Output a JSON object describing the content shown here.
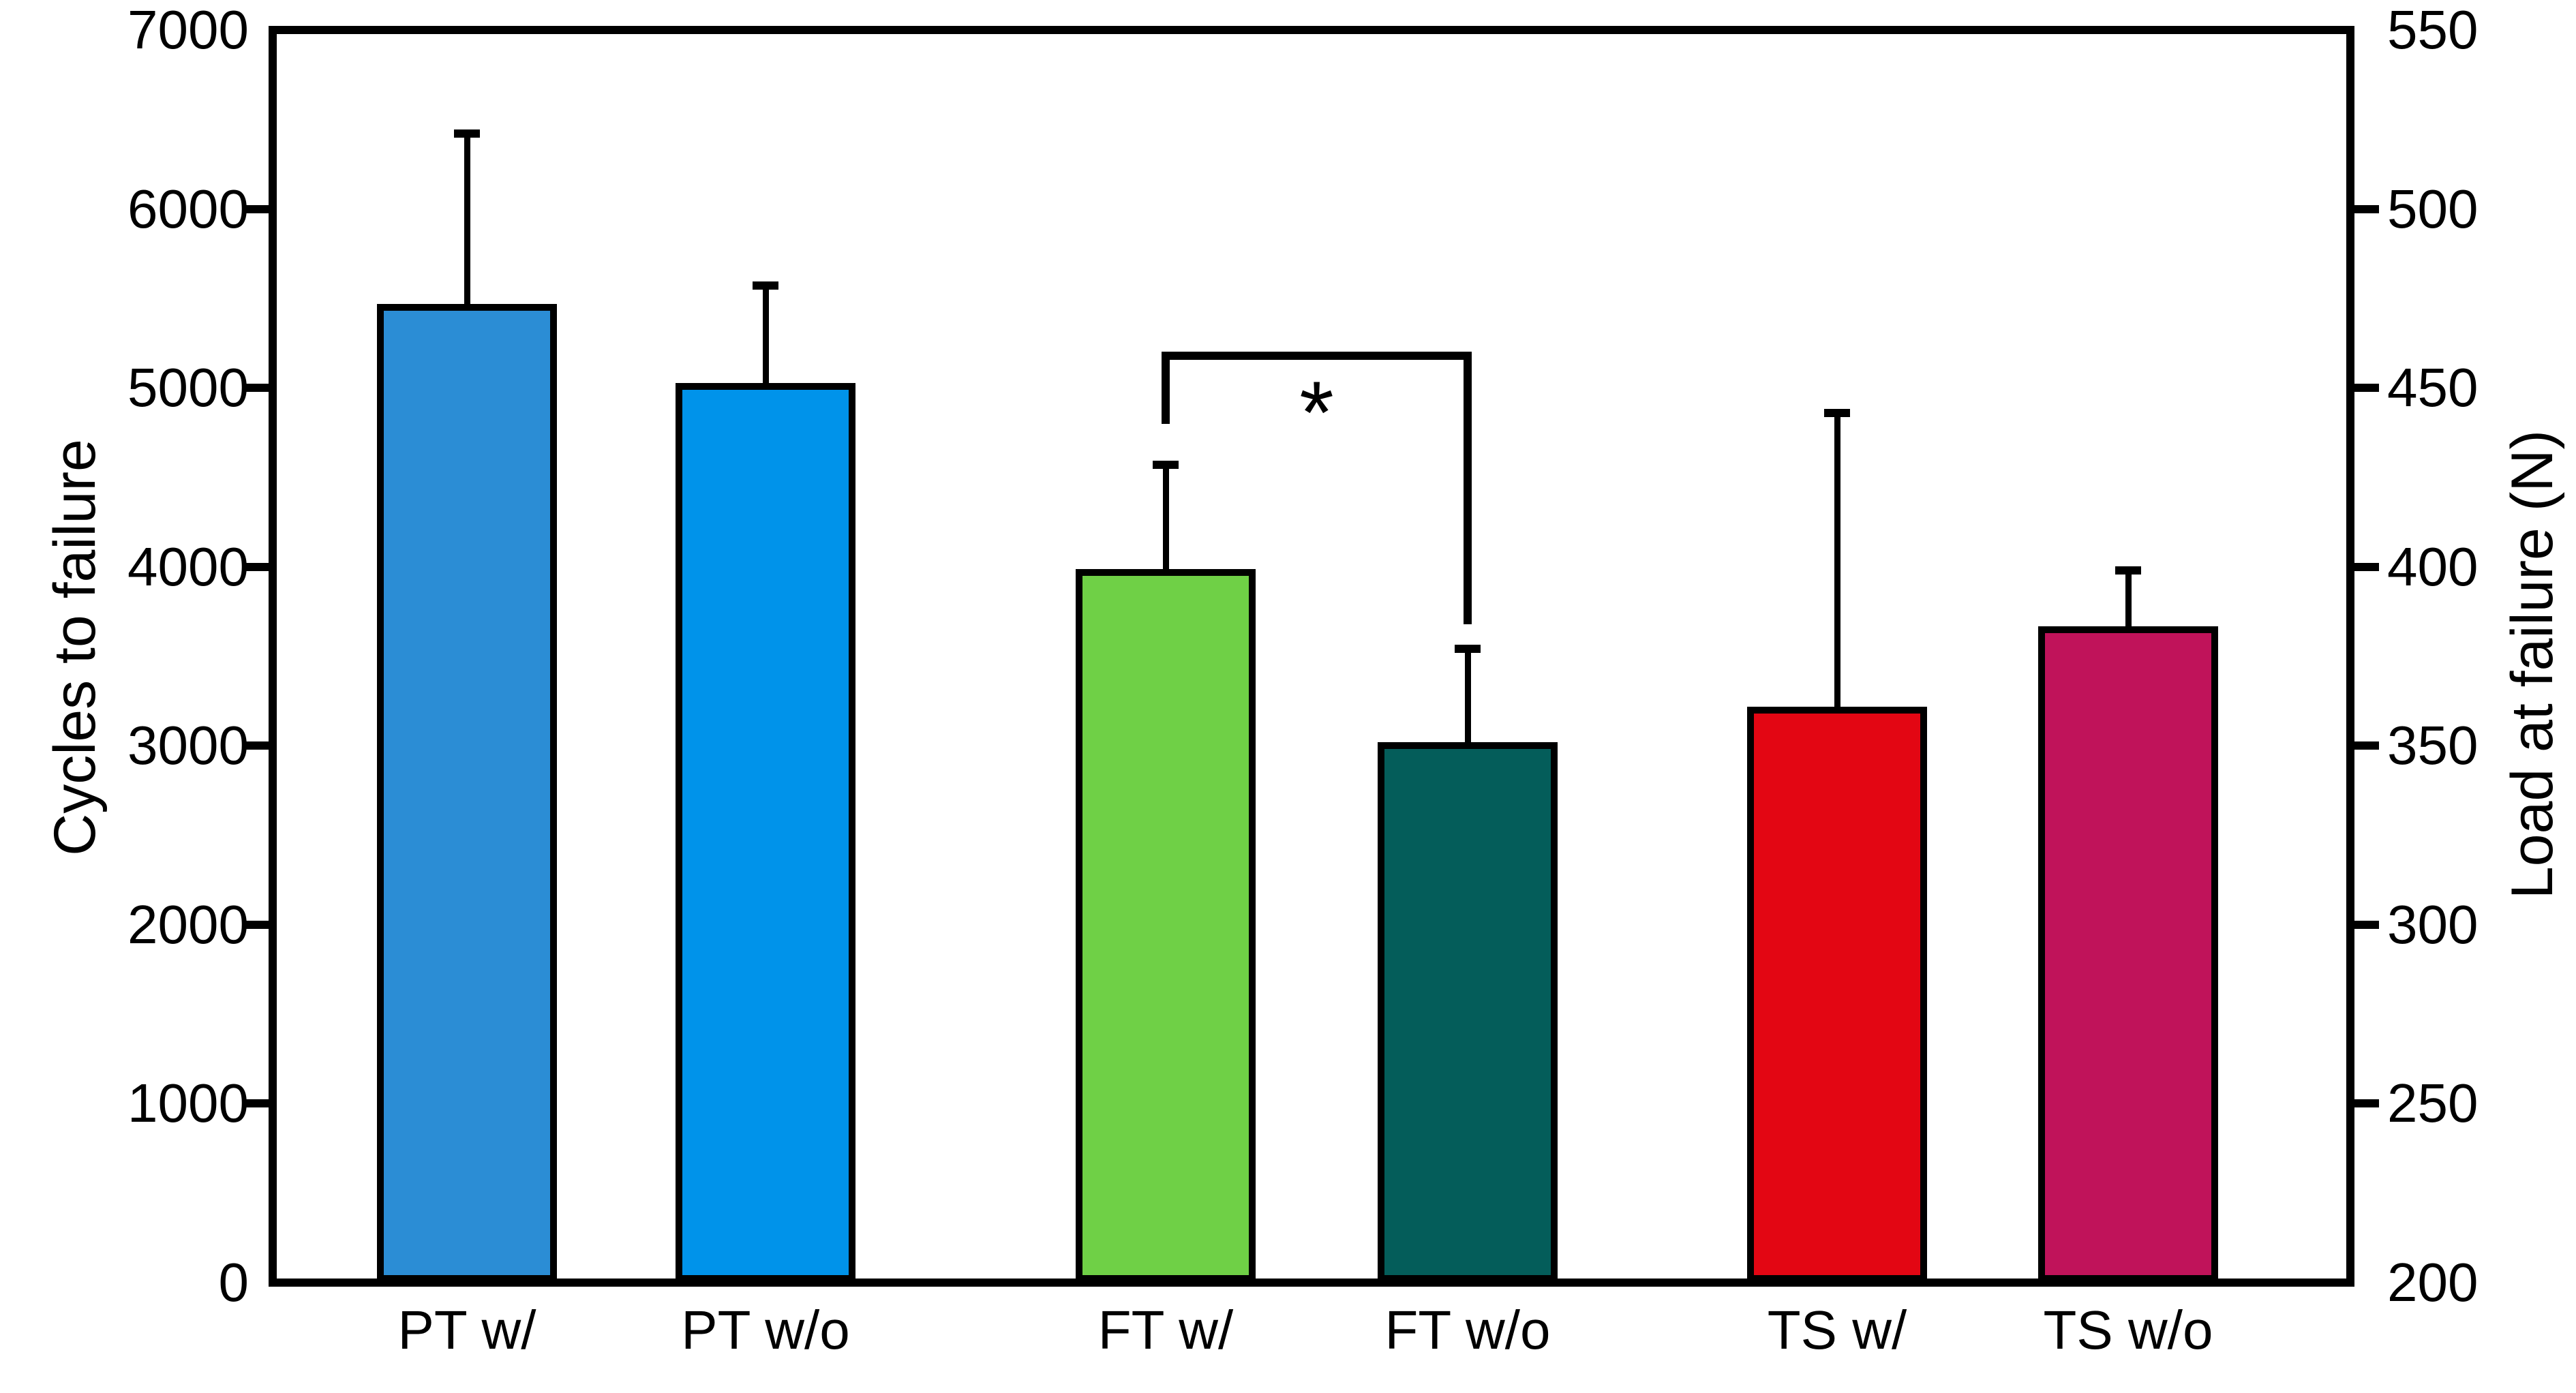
{
  "chart_data": {
    "type": "bar",
    "title": "",
    "categories": [
      "PT w/",
      "PT w/o",
      "FT w/",
      "FT w/o",
      "TS w/",
      "TS w/o"
    ],
    "values": [
      5450,
      5010,
      3970,
      3000,
      3200,
      3650
    ],
    "error_bar_tops": [
      6420,
      5570,
      4570,
      3540,
      4860,
      3980
    ],
    "bar_colors": [
      "#2b8dd5",
      "#0093ea",
      "#6fd046",
      "#045d5a",
      "#e30613",
      "#c0135a"
    ],
    "bar_edge_color": "#000000",
    "background_color": "#ffffff",
    "grid": false,
    "legend": null,
    "y_left": {
      "label": "Cycles to failure",
      "min": 0,
      "max": 7000,
      "ticks": [
        0,
        1000,
        2000,
        3000,
        4000,
        5000,
        6000,
        7000
      ],
      "tick_labels": [
        "0",
        "1000",
        "2000",
        "3000",
        "4000",
        "5000",
        "6000",
        "7000"
      ]
    },
    "y_right": {
      "label": "Load at failure (N)",
      "min": 200,
      "max": 550,
      "ticks": [
        200,
        250,
        300,
        350,
        400,
        450,
        500,
        550
      ],
      "tick_labels": [
        "200",
        "250",
        "300",
        "350",
        "400",
        "450",
        "500",
        "550"
      ]
    },
    "significance": {
      "between": [
        "FT w/",
        "FT w/o"
      ],
      "label": "*",
      "bracket_level_cycles": 5180,
      "left_drop_to_cycles": 4800,
      "right_drop_to_cycles": 3680
    }
  }
}
